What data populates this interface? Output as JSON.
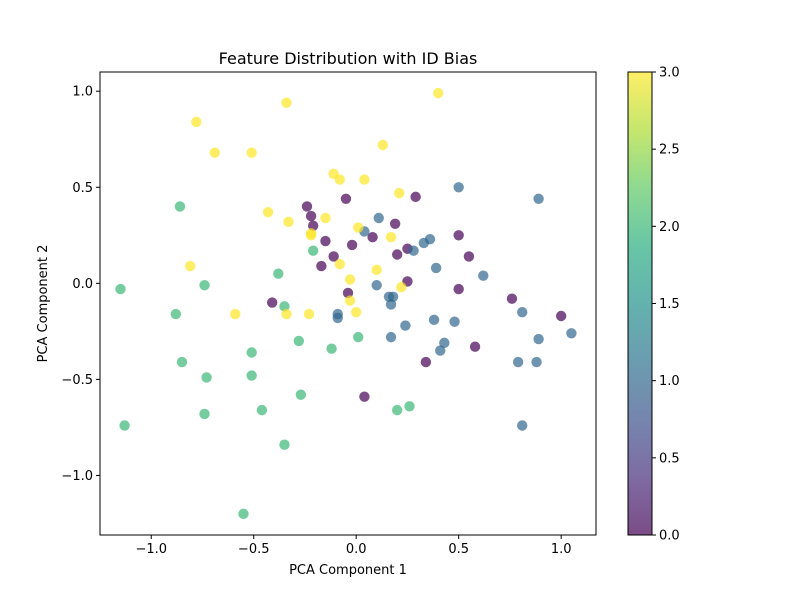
{
  "chart_data": {
    "type": "scatter",
    "title": "Feature Distribution with ID Bias",
    "xlabel": "PCA Component 1",
    "ylabel": "PCA Component 2",
    "xlim": [
      -1.25,
      1.17
    ],
    "ylim": [
      -1.31,
      1.1
    ],
    "xticks": [
      -1.0,
      -0.5,
      0.0,
      0.5,
      1.0
    ],
    "xtick_labels": [
      "−1.0",
      "−0.5",
      "0.0",
      "0.5",
      "1.0"
    ],
    "yticks": [
      -1.0,
      -0.5,
      0.0,
      0.5,
      1.0
    ],
    "ytick_labels": [
      "−1.0",
      "−0.5",
      "0.0",
      "0.5",
      "1.0"
    ],
    "grid": false,
    "colormap": "viridis",
    "marker_alpha": 0.7,
    "colorbar": {
      "range": [
        0.0,
        3.0
      ],
      "ticks": [
        0.0,
        0.5,
        1.0,
        1.5,
        2.0,
        2.5,
        3.0
      ],
      "tick_labels": [
        "0.0",
        "0.5",
        "1.0",
        "1.5",
        "2.0",
        "2.5",
        "3.0"
      ]
    },
    "points": [
      {
        "x": -0.24,
        "y": 0.4,
        "c": 0
      },
      {
        "x": -0.22,
        "y": 0.35,
        "c": 0
      },
      {
        "x": -0.21,
        "y": 0.3,
        "c": 0
      },
      {
        "x": -0.05,
        "y": 0.44,
        "c": 0
      },
      {
        "x": 0.29,
        "y": 0.45,
        "c": 0
      },
      {
        "x": -0.15,
        "y": 0.22,
        "c": 0
      },
      {
        "x": -0.02,
        "y": 0.2,
        "c": 0
      },
      {
        "x": 0.08,
        "y": 0.24,
        "c": 0
      },
      {
        "x": 0.19,
        "y": 0.31,
        "c": 0
      },
      {
        "x": 0.25,
        "y": 0.18,
        "c": 0
      },
      {
        "x": 0.2,
        "y": 0.15,
        "c": 0
      },
      {
        "x": -0.11,
        "y": 0.14,
        "c": 0
      },
      {
        "x": -0.17,
        "y": 0.09,
        "c": 0
      },
      {
        "x": 0.5,
        "y": 0.25,
        "c": 0
      },
      {
        "x": 0.55,
        "y": 0.14,
        "c": 0
      },
      {
        "x": 0.25,
        "y": 0.01,
        "c": 0
      },
      {
        "x": 0.5,
        "y": -0.03,
        "c": 0
      },
      {
        "x": -0.04,
        "y": -0.05,
        "c": 0
      },
      {
        "x": -0.41,
        "y": -0.1,
        "c": 0
      },
      {
        "x": 0.76,
        "y": -0.08,
        "c": 0
      },
      {
        "x": 1.0,
        "y": -0.17,
        "c": 0
      },
      {
        "x": 0.58,
        "y": -0.33,
        "c": 0
      },
      {
        "x": 0.34,
        "y": -0.41,
        "c": 0
      },
      {
        "x": 0.04,
        "y": -0.59,
        "c": 0
      },
      {
        "x": 0.5,
        "y": 0.5,
        "c": 1
      },
      {
        "x": 0.89,
        "y": 0.44,
        "c": 1
      },
      {
        "x": 0.11,
        "y": 0.34,
        "c": 1
      },
      {
        "x": 0.04,
        "y": 0.27,
        "c": 1
      },
      {
        "x": 0.36,
        "y": 0.23,
        "c": 1
      },
      {
        "x": 0.33,
        "y": 0.21,
        "c": 1
      },
      {
        "x": 0.28,
        "y": 0.17,
        "c": 1
      },
      {
        "x": 0.39,
        "y": 0.08,
        "c": 1
      },
      {
        "x": 0.62,
        "y": 0.04,
        "c": 1
      },
      {
        "x": 0.1,
        "y": -0.01,
        "c": 1
      },
      {
        "x": 0.16,
        "y": -0.07,
        "c": 1
      },
      {
        "x": 0.18,
        "y": -0.07,
        "c": 1
      },
      {
        "x": 0.17,
        "y": -0.11,
        "c": 1
      },
      {
        "x": 0.81,
        "y": -0.15,
        "c": 1
      },
      {
        "x": -0.09,
        "y": -0.16,
        "c": 1
      },
      {
        "x": -0.09,
        "y": -0.18,
        "c": 1
      },
      {
        "x": 0.38,
        "y": -0.19,
        "c": 1
      },
      {
        "x": 0.48,
        "y": -0.2,
        "c": 1
      },
      {
        "x": 0.24,
        "y": -0.22,
        "c": 1
      },
      {
        "x": 1.05,
        "y": -0.26,
        "c": 1
      },
      {
        "x": 0.17,
        "y": -0.28,
        "c": 1
      },
      {
        "x": 0.89,
        "y": -0.29,
        "c": 1
      },
      {
        "x": 0.43,
        "y": -0.31,
        "c": 1
      },
      {
        "x": 0.41,
        "y": -0.35,
        "c": 1
      },
      {
        "x": 0.79,
        "y": -0.41,
        "c": 1
      },
      {
        "x": 0.88,
        "y": -0.41,
        "c": 1
      },
      {
        "x": 0.81,
        "y": -0.74,
        "c": 1
      },
      {
        "x": -0.86,
        "y": 0.4,
        "c": 2
      },
      {
        "x": -0.21,
        "y": 0.17,
        "c": 2
      },
      {
        "x": -0.38,
        "y": 0.05,
        "c": 2
      },
      {
        "x": -0.74,
        "y": -0.01,
        "c": 2
      },
      {
        "x": -1.15,
        "y": -0.03,
        "c": 2
      },
      {
        "x": -0.35,
        "y": -0.12,
        "c": 2
      },
      {
        "x": -0.88,
        "y": -0.16,
        "c": 2
      },
      {
        "x": 0.01,
        "y": -0.28,
        "c": 2
      },
      {
        "x": -0.28,
        "y": -0.3,
        "c": 2
      },
      {
        "x": -0.12,
        "y": -0.34,
        "c": 2
      },
      {
        "x": -0.51,
        "y": -0.36,
        "c": 2
      },
      {
        "x": -0.85,
        "y": -0.41,
        "c": 2
      },
      {
        "x": -0.51,
        "y": -0.48,
        "c": 2
      },
      {
        "x": -0.73,
        "y": -0.49,
        "c": 2
      },
      {
        "x": -0.27,
        "y": -0.58,
        "c": 2
      },
      {
        "x": 0.26,
        "y": -0.64,
        "c": 2
      },
      {
        "x": -0.46,
        "y": -0.66,
        "c": 2
      },
      {
        "x": 0.2,
        "y": -0.66,
        "c": 2
      },
      {
        "x": -0.74,
        "y": -0.68,
        "c": 2
      },
      {
        "x": -1.13,
        "y": -0.74,
        "c": 2
      },
      {
        "x": -0.35,
        "y": -0.84,
        "c": 2
      },
      {
        "x": -0.55,
        "y": -1.2,
        "c": 2
      },
      {
        "x": 0.4,
        "y": 0.99,
        "c": 3
      },
      {
        "x": -0.34,
        "y": 0.94,
        "c": 3
      },
      {
        "x": -0.78,
        "y": 0.84,
        "c": 3
      },
      {
        "x": 0.13,
        "y": 0.72,
        "c": 3
      },
      {
        "x": -0.69,
        "y": 0.68,
        "c": 3
      },
      {
        "x": -0.51,
        "y": 0.68,
        "c": 3
      },
      {
        "x": -0.11,
        "y": 0.57,
        "c": 3
      },
      {
        "x": -0.08,
        "y": 0.54,
        "c": 3
      },
      {
        "x": 0.04,
        "y": 0.54,
        "c": 3
      },
      {
        "x": 0.21,
        "y": 0.47,
        "c": 3
      },
      {
        "x": -0.43,
        "y": 0.37,
        "c": 3
      },
      {
        "x": -0.15,
        "y": 0.34,
        "c": 3
      },
      {
        "x": -0.33,
        "y": 0.32,
        "c": 3
      },
      {
        "x": 0.01,
        "y": 0.29,
        "c": 3
      },
      {
        "x": -0.22,
        "y": 0.26,
        "c": 3
      },
      {
        "x": -0.22,
        "y": 0.25,
        "c": 3
      },
      {
        "x": 0.17,
        "y": 0.24,
        "c": 3
      },
      {
        "x": -0.08,
        "y": 0.1,
        "c": 3
      },
      {
        "x": -0.81,
        "y": 0.09,
        "c": 3
      },
      {
        "x": 0.1,
        "y": 0.07,
        "c": 3
      },
      {
        "x": -0.03,
        "y": 0.02,
        "c": 3
      },
      {
        "x": 0.22,
        "y": -0.02,
        "c": 3
      },
      {
        "x": -0.03,
        "y": -0.09,
        "c": 3
      },
      {
        "x": -0.59,
        "y": -0.16,
        "c": 3
      },
      {
        "x": -0.34,
        "y": -0.16,
        "c": 3
      },
      {
        "x": -0.23,
        "y": -0.16,
        "c": 3
      },
      {
        "x": 0.0,
        "y": -0.15,
        "c": 3
      }
    ]
  }
}
